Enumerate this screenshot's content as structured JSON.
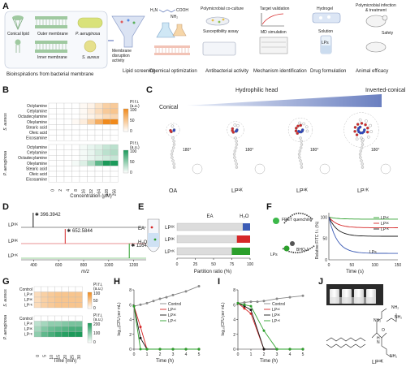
{
  "panelA": {
    "label": "A",
    "conical": "Conical lipid",
    "outer": "Outer membrane",
    "inner": "Inner membrane",
    "pa": "P. aeruginosa",
    "sa": "S. aureus",
    "caption": "Bioinspirations from bacterial membrane",
    "funnel": "Membrane disruption activity",
    "cooh": "COOH",
    "nh2": "NH₂",
    "h2n": "H₂N",
    "coculture": "Polymicrobial co-culture",
    "suscept": "Susceptibility assay",
    "target": "Target validation",
    "md": "MD simulation",
    "hydrogel": "Hydrogel",
    "solution": "Solution",
    "lps": "LPs",
    "infect": "Polymicrobial infection & treatment",
    "safety": "Safety",
    "steps": [
      "Lipid screening",
      "Chemical optimization",
      "Antibacterial activity",
      "Mechanism identification",
      "Drug formulation",
      "Animal efficacy"
    ]
  },
  "panelB": {
    "label": "B",
    "groups": [
      "S. aureus",
      "P. aeruginosa"
    ],
    "lipids": [
      "Octylamine",
      "Cetylamine",
      "Octadecylamine",
      "Oleylamine",
      "Stearic acid",
      "Oleic acid",
      "Eicosamine"
    ],
    "concentrations": [
      "0",
      "2",
      "4",
      "8",
      "16",
      "32",
      "64",
      "128",
      "256"
    ],
    "xlabel": "Concentration (μM)",
    "legend_title": "PI f.i.",
    "legend_unit": "(a.u.)",
    "legend_ticks": [
      "100",
      "50",
      "0"
    ],
    "sa_values": [
      [
        0,
        0,
        0,
        0,
        5,
        10,
        25,
        40,
        45
      ],
      [
        0,
        0,
        0,
        0,
        5,
        15,
        30,
        45,
        50
      ],
      [
        0,
        0,
        0,
        0,
        5,
        10,
        20,
        30,
        35
      ],
      [
        0,
        0,
        0,
        5,
        15,
        40,
        70,
        100,
        100
      ],
      [
        0,
        0,
        0,
        0,
        0,
        0,
        0,
        0,
        0
      ],
      [
        0,
        0,
        0,
        0,
        0,
        0,
        0,
        0,
        0
      ],
      [
        0,
        0,
        0,
        0,
        0,
        0,
        0,
        0,
        0
      ]
    ],
    "pa_values": [
      [
        0,
        0,
        0,
        0,
        5,
        10,
        15,
        25,
        30
      ],
      [
        0,
        0,
        0,
        0,
        5,
        10,
        20,
        30,
        35
      ],
      [
        0,
        0,
        0,
        0,
        5,
        10,
        15,
        20,
        25
      ],
      [
        0,
        0,
        0,
        5,
        15,
        35,
        70,
        100,
        100
      ],
      [
        0,
        0,
        0,
        0,
        0,
        0,
        0,
        0,
        0
      ],
      [
        0,
        0,
        0,
        0,
        0,
        0,
        0,
        0,
        0
      ],
      [
        0,
        0,
        0,
        0,
        0,
        0,
        0,
        0,
        0
      ]
    ]
  },
  "panelC": {
    "label": "C",
    "left": "Conical",
    "right": "Inverted-conical",
    "mid": "Hydrophilic head",
    "rot": "180°",
    "mols": [
      "OA",
      "LP¹ᴷ",
      "LP³ᴷ",
      "LP⁷ᴷ"
    ]
  },
  "panelD": {
    "label": "D",
    "peaks": [
      {
        "name": "LP¹ᴷ",
        "mz": 396.3942,
        "label": "396.3942",
        "color": "#1a1a1a"
      },
      {
        "name": "LP³ᴷ",
        "mz": 652.5844,
        "label": "652.5844",
        "color": "#d62728"
      },
      {
        "name": "LP⁷ᴷ",
        "mz": 1164.962,
        "label": "1164.9620",
        "color": "#2ca02c"
      }
    ],
    "xlabel": "m/z",
    "xticks": [
      "400",
      "600",
      "800",
      "1000",
      "1200"
    ]
  },
  "panelE": {
    "label": "E",
    "ea": "EA",
    "h2o": "H₂O",
    "rows": [
      "LP¹ᴷ",
      "LP³ᴷ",
      "LP⁷ᴷ"
    ],
    "ea_values": [
      90,
      82,
      75
    ],
    "h2o_values": [
      10,
      18,
      25
    ],
    "colors": [
      "#3b5bb5",
      "#d62728",
      "#2ca02c"
    ],
    "xlabel": "Partition ratio (%)",
    "xticks": [
      "0",
      "25",
      "50",
      "75",
      "100"
    ]
  },
  "panelF": {
    "label": "F",
    "fret": "FRET quenching",
    "lps": "LPs",
    "bhq": "BHQ-1",
    "ylabel": "Relative FITC f.i. (%)",
    "xlabel": "Time (s)",
    "xticks": [
      "0",
      "50",
      "100",
      "150"
    ],
    "yticks": [
      "0",
      "50",
      "100"
    ],
    "legend": [
      "LP¹ᴷ",
      "LP³ᴷ",
      "LP⁷ᴷ",
      "LPs"
    ],
    "plateaus": [
      95,
      75,
      55,
      15
    ],
    "colors": [
      "#2ca02c",
      "#d62728",
      "#1a1a1a",
      "#3b5bb5"
    ]
  },
  "panelG": {
    "label": "G",
    "groups": [
      "S. aureus",
      "P. aeruginosa"
    ],
    "rows": [
      "Control",
      "LP¹ᴷ",
      "LP³ᴷ",
      "LP⁷ᴷ"
    ],
    "times": [
      "0",
      "5",
      "10",
      "15",
      "20",
      "25",
      "30"
    ],
    "xlabel": "Time (min)",
    "legend_title": "PI f.i.",
    "legend_unit": "(a.u.)",
    "sa_ticks": [
      "100",
      "50",
      "0"
    ],
    "pa_ticks": [
      "200",
      "100",
      "0"
    ],
    "sa_values": [
      [
        0,
        0,
        0,
        0,
        0,
        0,
        0
      ],
      [
        30,
        40,
        45,
        50,
        50,
        50,
        50
      ],
      [
        30,
        40,
        45,
        50,
        50,
        50,
        50
      ],
      [
        30,
        40,
        45,
        50,
        50,
        50,
        50
      ]
    ],
    "pa_values": [
      [
        0,
        0,
        0,
        0,
        0,
        0,
        0
      ],
      [
        60,
        80,
        100,
        100,
        110,
        120,
        120
      ],
      [
        80,
        110,
        130,
        140,
        150,
        160,
        160
      ],
      [
        100,
        140,
        160,
        180,
        190,
        200,
        200
      ]
    ]
  },
  "panelH": {
    "label": "H",
    "ylabel": "log₁₀(CFU per mL)",
    "xlabel": "Time (h)",
    "xticks": [
      "0",
      "1",
      "2",
      "3",
      "4",
      "5"
    ],
    "yticks": [
      "0",
      "2",
      "4",
      "6",
      "8"
    ],
    "series": [
      {
        "name": "Control",
        "color": "#888888",
        "x": [
          0,
          0.5,
          1,
          1.5,
          2,
          2.5,
          3,
          4,
          5
        ],
        "y": [
          5.8,
          6.0,
          6.2,
          6.5,
          6.8,
          7.0,
          7.3,
          7.8,
          8.5
        ]
      },
      {
        "name": "LP¹ᴷ",
        "color": "#d62728",
        "x": [
          0,
          0.5,
          1,
          2,
          3,
          4,
          5
        ],
        "y": [
          5.8,
          3.0,
          0,
          0,
          0,
          0,
          0
        ]
      },
      {
        "name": "LP³ᴷ",
        "color": "#1a1a1a",
        "x": [
          0,
          0.5,
          1,
          2,
          3,
          4,
          5
        ],
        "y": [
          5.8,
          1.5,
          0,
          0,
          0,
          0,
          0
        ]
      },
      {
        "name": "LP⁷ᴷ",
        "color": "#2ca02c",
        "x": [
          0,
          0.5,
          1,
          2,
          3,
          4,
          5
        ],
        "y": [
          5.8,
          0,
          0,
          0,
          0,
          0,
          0
        ]
      }
    ]
  },
  "panelI": {
    "label": "I",
    "ylabel": "log₁₀(CFU per mL)",
    "xlabel": "Time (h)",
    "xticks": [
      "0",
      "1",
      "2",
      "3",
      "4",
      "5"
    ],
    "yticks": [
      "0",
      "2",
      "4",
      "6",
      "8"
    ],
    "series": [
      {
        "name": "Control",
        "color": "#888888",
        "x": [
          0,
          0.5,
          1,
          1.5,
          2,
          3,
          4,
          5
        ],
        "y": [
          6.2,
          6.3,
          6.4,
          6.4,
          6.5,
          6.8,
          7.0,
          7.2
        ]
      },
      {
        "name": "LP¹ᴷ",
        "color": "#d62728",
        "x": [
          0,
          0.5,
          1,
          2,
          3,
          4,
          5
        ],
        "y": [
          6.2,
          5.5,
          4.8,
          0,
          0,
          0,
          0
        ]
      },
      {
        "name": "LP³ᴷ",
        "color": "#1a1a1a",
        "x": [
          0,
          0.5,
          1,
          2,
          3,
          4,
          5
        ],
        "y": [
          6.2,
          5.8,
          5.3,
          0,
          0,
          0,
          0
        ]
      },
      {
        "name": "LP⁷ᴷ",
        "color": "#2ca02c",
        "x": [
          0,
          0.5,
          1,
          2,
          3,
          4,
          5
        ],
        "y": [
          6.2,
          6.0,
          5.8,
          2.5,
          0,
          0,
          0
        ]
      }
    ]
  },
  "panelJ": {
    "label": "J",
    "name": "LP³ᴷ",
    "nh2": "NH₂",
    "h": "H",
    "n": "N",
    "o": "O"
  }
}
